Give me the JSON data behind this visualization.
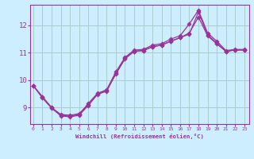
{
  "xlabel": "Windchill (Refroidissement éolien,°C)",
  "bg_color": "#cceeff",
  "grid_color": "#aacccc",
  "line_color": "#993399",
  "x_ticks": [
    0,
    1,
    2,
    3,
    4,
    5,
    6,
    7,
    8,
    9,
    10,
    11,
    12,
    13,
    14,
    15,
    16,
    17,
    18,
    19,
    20,
    21,
    22,
    23
  ],
  "y_ticks": [
    9,
    10,
    11,
    12
  ],
  "ylim": [
    8.4,
    12.75
  ],
  "xlim": [
    -0.3,
    23.5
  ],
  "line1_x": [
    0,
    1,
    2,
    3,
    4,
    5,
    6,
    7,
    8,
    9,
    10,
    11,
    12,
    13,
    14,
    15,
    16,
    17,
    18,
    19,
    20,
    21,
    22,
    23
  ],
  "line1_y": [
    9.8,
    9.4,
    9.0,
    8.75,
    8.72,
    8.78,
    9.1,
    9.5,
    9.62,
    10.22,
    10.78,
    11.05,
    11.08,
    11.22,
    11.28,
    11.42,
    11.55,
    11.72,
    12.3,
    11.62,
    11.32,
    11.05,
    11.1,
    11.1
  ],
  "line2_x": [
    0,
    1,
    2,
    3,
    4,
    5,
    6,
    7,
    8,
    9,
    10,
    11,
    12,
    13,
    14,
    15,
    16,
    17,
    18,
    19,
    20,
    21,
    22,
    23
  ],
  "line2_y": [
    9.8,
    9.38,
    9.0,
    8.72,
    8.68,
    8.75,
    9.15,
    9.52,
    9.65,
    10.3,
    10.83,
    11.1,
    11.12,
    11.28,
    11.33,
    11.5,
    11.62,
    12.05,
    12.55,
    11.72,
    11.42,
    11.08,
    11.12,
    11.12
  ],
  "line3_x": [
    0,
    1,
    2,
    3,
    4,
    5,
    6,
    7,
    8,
    9,
    10,
    11,
    12,
    13,
    14,
    15,
    16,
    17,
    18,
    19,
    20,
    21,
    22,
    23
  ],
  "line3_y": [
    9.8,
    9.35,
    8.98,
    8.7,
    8.66,
    8.72,
    9.08,
    9.48,
    9.6,
    10.25,
    10.8,
    11.05,
    11.08,
    11.22,
    11.28,
    11.42,
    11.55,
    11.68,
    12.48,
    11.65,
    11.35,
    11.05,
    11.1,
    11.1
  ]
}
